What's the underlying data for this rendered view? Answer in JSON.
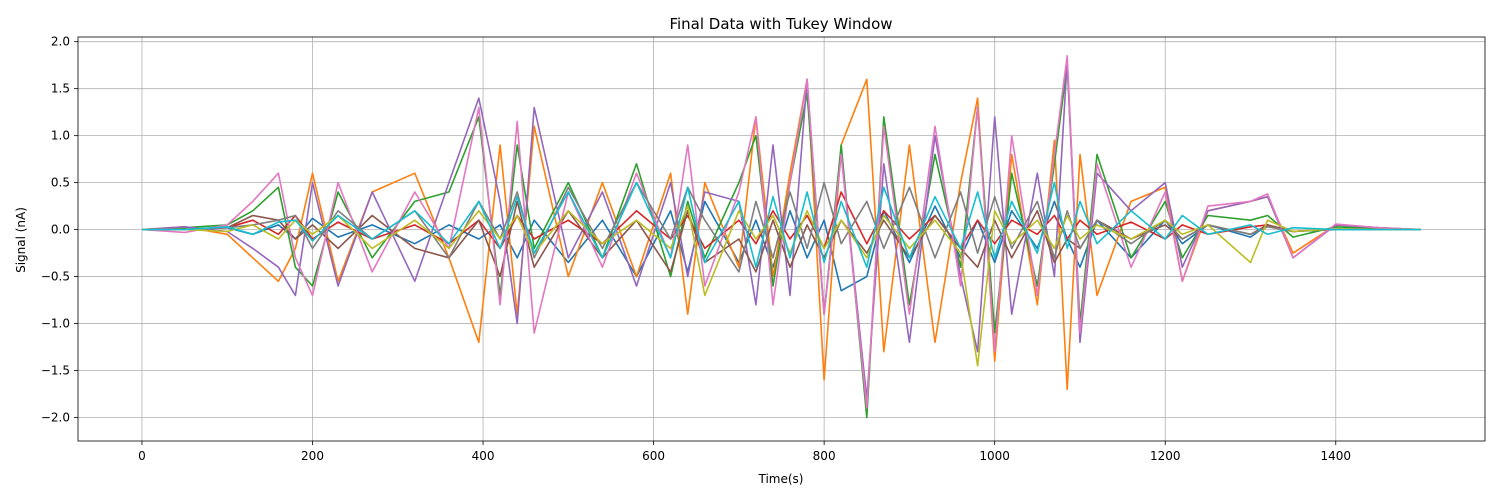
{
  "chart_data": {
    "type": "line",
    "title": "Final Data with Tukey Window",
    "xlabel": "Time(s)",
    "ylabel": "Signal (nA)",
    "xlim": [
      -75,
      1575
    ],
    "ylim": [
      -2.25,
      2.05
    ],
    "xticks": [
      0,
      200,
      400,
      600,
      800,
      1000,
      1200,
      1400
    ],
    "yticks": [
      -2.0,
      -1.5,
      -1.0,
      -0.5,
      0.0,
      0.5,
      1.0,
      1.5,
      2.0
    ],
    "xtick_labels": [
      "0",
      "200",
      "400",
      "600",
      "800",
      "1000",
      "1200",
      "1400"
    ],
    "ytick_labels": [
      "−2.0",
      "−1.5",
      "−1.0",
      "−0.5",
      "0.0",
      "0.5",
      "1.0",
      "1.5",
      "2.0"
    ],
    "grid": true,
    "colors": [
      "#1f77b4",
      "#ff7f0e",
      "#2ca02c",
      "#d62728",
      "#9467bd",
      "#8c564b",
      "#e377c2",
      "#7f7f7f",
      "#bcbd22",
      "#17becf"
    ],
    "x": [
      0,
      50,
      100,
      130,
      160,
      180,
      200,
      230,
      270,
      320,
      360,
      395,
      420,
      440,
      460,
      500,
      540,
      580,
      620,
      640,
      660,
      700,
      720,
      740,
      760,
      780,
      800,
      820,
      850,
      870,
      900,
      930,
      960,
      980,
      1000,
      1020,
      1050,
      1070,
      1085,
      1100,
      1120,
      1160,
      1200,
      1220,
      1250,
      1300,
      1320,
      1350,
      1400,
      1450,
      1500
    ],
    "series": [
      {
        "values": [
          0,
          0,
          0.02,
          -0.05,
          0.05,
          -0.1,
          0.12,
          -0.08,
          0.05,
          -0.15,
          0.05,
          -0.1,
          0.05,
          -0.3,
          0.1,
          -0.35,
          0.1,
          -0.5,
          0.2,
          -0.45,
          0.3,
          -0.35,
          0.1,
          -0.4,
          0.2,
          -0.3,
          0.1,
          -0.65,
          -0.5,
          0.2,
          -0.35,
          0.25,
          -0.3,
          0.1,
          -0.35,
          0.2,
          -0.2,
          0.3,
          -0.1,
          -0.4,
          0.1,
          -0.3,
          0.1,
          -0.15,
          0.05,
          -0.08,
          0.05,
          -0.02,
          0,
          0,
          0
        ]
      },
      {
        "values": [
          0,
          0.03,
          -0.05,
          -0.3,
          -0.55,
          -0.2,
          0.6,
          -0.55,
          0.4,
          0.6,
          -0.3,
          -1.2,
          0.9,
          -0.9,
          1.1,
          -0.5,
          0.5,
          -0.5,
          0.6,
          -0.9,
          0.5,
          -0.4,
          1.2,
          -0.5,
          0.6,
          1.6,
          -1.6,
          0.9,
          1.6,
          -1.3,
          0.9,
          -1.2,
          0.5,
          1.4,
          -1.4,
          0.8,
          -0.8,
          0.95,
          -1.7,
          0.8,
          -0.7,
          0.3,
          0.45,
          -0.55,
          0.2,
          0.3,
          0.35,
          -0.25,
          0.05,
          0.02,
          0
        ]
      },
      {
        "values": [
          0,
          0.02,
          0.05,
          0.2,
          0.45,
          -0.4,
          -0.6,
          0.4,
          -0.3,
          0.3,
          0.4,
          1.2,
          -0.7,
          0.9,
          -0.2,
          0.5,
          -0.3,
          0.7,
          -0.5,
          0.3,
          -0.3,
          0.5,
          1.0,
          -0.6,
          0.5,
          1.45,
          -0.9,
          0.9,
          -2.0,
          1.2,
          -0.8,
          0.8,
          -0.4,
          1.3,
          -1.1,
          0.6,
          -0.6,
          0.7,
          1.75,
          -1.0,
          0.8,
          -0.3,
          0.3,
          -0.3,
          0.15,
          0.1,
          0.15,
          -0.08,
          0.03,
          0.01,
          0
        ]
      },
      {
        "values": [
          0,
          0,
          0.02,
          0.1,
          -0.05,
          0.15,
          -0.1,
          0.08,
          -0.1,
          0.05,
          -0.15,
          0.1,
          -0.2,
          0.15,
          -0.1,
          0.1,
          -0.15,
          0.2,
          -0.1,
          0.15,
          -0.2,
          0.1,
          -0.15,
          0.2,
          -0.1,
          0.15,
          -0.2,
          0.4,
          -0.15,
          0.2,
          -0.1,
          0.15,
          -0.2,
          0.1,
          -0.15,
          0.1,
          -0.05,
          0.15,
          -0.1,
          0.1,
          -0.05,
          0.08,
          -0.1,
          0.05,
          -0.05,
          0.03,
          0.05,
          -0.02,
          0.01,
          0,
          0
        ]
      },
      {
        "values": [
          0,
          0.03,
          -0.02,
          -0.2,
          -0.4,
          -0.7,
          0.5,
          -0.6,
          0.4,
          -0.55,
          0.5,
          1.4,
          0.3,
          -1.0,
          1.3,
          -0.3,
          0.4,
          -0.6,
          0.5,
          -0.5,
          0.4,
          0.3,
          -0.8,
          0.9,
          -0.7,
          1.6,
          -0.9,
          0.8,
          -1.8,
          0.7,
          -1.2,
          1.0,
          -0.5,
          -1.3,
          1.2,
          -0.9,
          0.6,
          -0.5,
          1.8,
          -1.2,
          0.6,
          0.2,
          0.5,
          -0.4,
          0.2,
          0.3,
          0.35,
          -0.3,
          0.05,
          0.02,
          0
        ]
      },
      {
        "values": [
          0,
          0,
          0.02,
          0.15,
          0.1,
          -0.1,
          0.05,
          -0.2,
          0.15,
          -0.2,
          -0.3,
          0.1,
          -0.5,
          0.3,
          -0.4,
          0.2,
          -0.3,
          0.1,
          -0.45,
          0.2,
          -0.35,
          -0.1,
          -0.45,
          0.1,
          -0.4,
          0.05,
          -0.3,
          0.1,
          -0.25,
          0.1,
          -0.3,
          0.15,
          -0.2,
          -0.4,
          0.1,
          -0.3,
          0.2,
          -0.35,
          -0.1,
          -0.2,
          0.1,
          -0.1,
          0.05,
          -0.1,
          0.05,
          -0.05,
          0.05,
          -0.02,
          0.01,
          0,
          0
        ]
      },
      {
        "values": [
          0,
          -0.03,
          0.05,
          0.3,
          0.6,
          -0.3,
          -0.7,
          0.5,
          -0.45,
          0.4,
          -0.2,
          1.3,
          -0.8,
          1.15,
          -1.1,
          0.4,
          -0.4,
          0.6,
          -0.3,
          0.9,
          -0.6,
          0.4,
          1.2,
          -0.8,
          0.5,
          1.6,
          -0.9,
          0.8,
          -1.9,
          1.1,
          -0.9,
          1.1,
          -0.6,
          1.3,
          -1.3,
          1.0,
          -0.7,
          0.8,
          1.85,
          -1.1,
          0.7,
          -0.4,
          0.4,
          -0.55,
          0.25,
          0.3,
          0.38,
          -0.3,
          0.06,
          0.02,
          0
        ]
      },
      {
        "values": [
          0,
          0,
          0.02,
          0.05,
          0.1,
          0.15,
          -0.2,
          0.2,
          -0.1,
          0.2,
          -0.3,
          0.3,
          -0.1,
          0.4,
          -0.3,
          0.45,
          -0.2,
          0.5,
          -0.1,
          0.45,
          0.1,
          -0.45,
          0.3,
          -0.3,
          0.4,
          -0.2,
          0.5,
          -0.15,
          0.3,
          -0.2,
          0.45,
          -0.3,
          0.4,
          -0.25,
          0.35,
          -0.2,
          0.3,
          -0.3,
          0.2,
          -0.2,
          0.1,
          -0.15,
          0.1,
          -0.1,
          0.05,
          -0.05,
          0.03,
          -0.02,
          0.01,
          0,
          0
        ]
      },
      {
        "values": [
          0,
          0,
          -0.02,
          0.05,
          -0.1,
          0.1,
          -0.05,
          0.15,
          -0.2,
          0.1,
          -0.2,
          0.2,
          -0.1,
          0.15,
          -0.25,
          0.2,
          -0.15,
          0.1,
          -0.2,
          0.25,
          -0.7,
          0.2,
          -0.1,
          0.15,
          -0.25,
          0.2,
          -0.2,
          0.1,
          -0.3,
          0.15,
          -0.2,
          0.1,
          -0.25,
          -1.45,
          0.2,
          -0.15,
          0.1,
          -0.2,
          0.15,
          -0.1,
          0.05,
          -0.1,
          0.1,
          -0.05,
          0.05,
          -0.35,
          0.1,
          -0.02,
          0.01,
          0,
          0
        ]
      },
      {
        "values": [
          0,
          0,
          0.03,
          -0.05,
          0.08,
          0.1,
          -0.12,
          0.15,
          -0.1,
          0.2,
          -0.15,
          0.3,
          -0.2,
          0.35,
          -0.25,
          0.4,
          -0.3,
          0.5,
          -0.3,
          0.45,
          -0.35,
          0.3,
          -0.4,
          0.35,
          -0.3,
          0.4,
          -0.35,
          0.3,
          -0.4,
          0.45,
          -0.3,
          0.35,
          -0.2,
          0.4,
          -0.3,
          0.3,
          -0.25,
          0.5,
          -0.2,
          0.3,
          -0.15,
          0.2,
          -0.1,
          0.15,
          -0.05,
          0.05,
          -0.05,
          0.02,
          0,
          0,
          0
        ]
      }
    ]
  }
}
